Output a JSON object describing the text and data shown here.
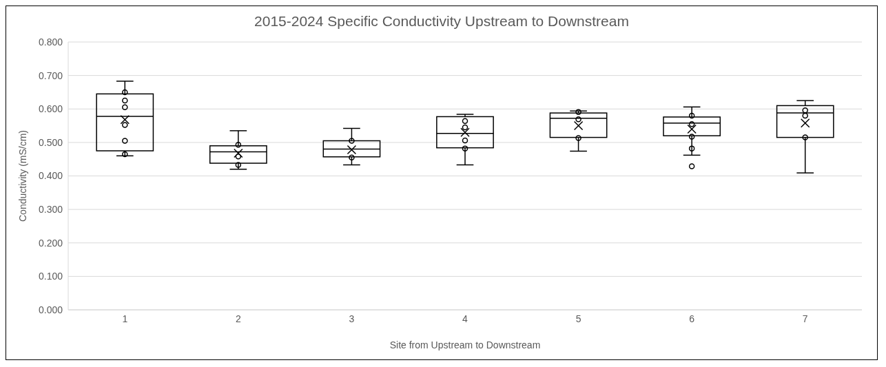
{
  "chart_data": {
    "type": "box",
    "title": "2015-2024 Specific Conductivity Upstream to Downstream",
    "xlabel": "Site from Upstream to Downstream",
    "ylabel": "Conductivity  (mS/cm)",
    "categories": [
      "1",
      "2",
      "3",
      "4",
      "5",
      "6",
      "7"
    ],
    "ylim": [
      0,
      0.8
    ],
    "yticks": [
      {
        "value": 0,
        "label": "0.000"
      },
      {
        "value": 0.1,
        "label": "0.100"
      },
      {
        "value": 0.2,
        "label": "0.200"
      },
      {
        "value": 0.3,
        "label": "0.300"
      },
      {
        "value": 0.4,
        "label": "0.400"
      },
      {
        "value": 0.5,
        "label": "0.500"
      },
      {
        "value": 0.6,
        "label": "0.600"
      },
      {
        "value": 0.7,
        "label": "0.700"
      },
      {
        "value": 0.8,
        "label": "0.800"
      }
    ],
    "grid": "y",
    "legend": false,
    "series": [
      {
        "type": "box",
        "color": "#000000",
        "boxes": [
          {
            "low": 0.46,
            "q1": 0.475,
            "median": 0.578,
            "q3": 0.645,
            "high": 0.683,
            "mean": 0.568
          },
          {
            "low": 0.42,
            "q1": 0.438,
            "median": 0.472,
            "q3": 0.49,
            "high": 0.535,
            "mean": 0.468
          },
          {
            "low": 0.433,
            "q1": 0.457,
            "median": 0.48,
            "q3": 0.505,
            "high": 0.542,
            "mean": 0.478
          },
          {
            "low": 0.433,
            "q1": 0.484,
            "median": 0.527,
            "q3": 0.577,
            "high": 0.584,
            "mean": 0.53
          },
          {
            "low": 0.474,
            "q1": 0.515,
            "median": 0.572,
            "q3": 0.588,
            "high": 0.594,
            "mean": 0.55
          },
          {
            "low": 0.462,
            "q1": 0.52,
            "median": 0.558,
            "q3": 0.576,
            "high": 0.606,
            "mean": 0.54,
            "outliers": [
              0.429
            ]
          },
          {
            "low": 0.409,
            "q1": 0.515,
            "median": 0.588,
            "q3": 0.61,
            "high": 0.625,
            "mean": 0.558
          }
        ]
      },
      {
        "type": "scatter",
        "color": "#000000",
        "marker": "circle",
        "x": [
          "1",
          "1",
          "1",
          "1",
          "1",
          "1",
          "2",
          "2",
          "2",
          "3",
          "3",
          "4",
          "4",
          "4",
          "4",
          "5",
          "5",
          "5",
          "6",
          "6",
          "6",
          "6",
          "7",
          "7",
          "7"
        ],
        "values": [
          0.65,
          0.625,
          0.605,
          0.552,
          0.505,
          0.465,
          0.493,
          0.458,
          0.433,
          0.505,
          0.455,
          0.564,
          0.545,
          0.506,
          0.482,
          0.591,
          0.569,
          0.513,
          0.58,
          0.555,
          0.517,
          0.482,
          0.596,
          0.58,
          0.515
        ]
      }
    ]
  }
}
